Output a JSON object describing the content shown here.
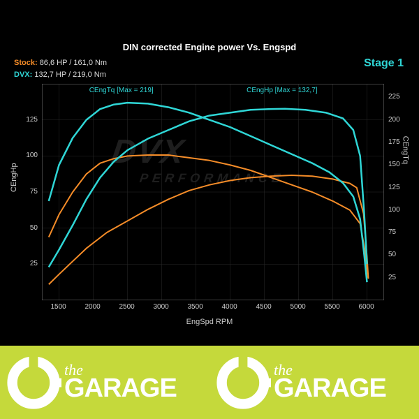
{
  "chart": {
    "type": "line",
    "title": "DIN corrected Engine power Vs. Engspd",
    "stage_label": "Stage 1",
    "background_color": "#000000",
    "grid_color": "#2a2a2a",
    "text_color": "#cccccc",
    "watermark": "DVX",
    "watermark_sub": "PERFORMANCE",
    "legend": {
      "stock": {
        "label": "Stock:",
        "value": "86,6 HP / 161,0 Nm",
        "color": "#f58c28"
      },
      "dvx": {
        "label": "DVX:",
        "value": "132,7 HP / 219,0 Nm",
        "color": "#2fd6d6"
      }
    },
    "x_axis": {
      "label": "EngSpd RPM",
      "min": 1250,
      "max": 6250,
      "ticks": [
        1500,
        2000,
        2500,
        3000,
        3500,
        4000,
        4500,
        5000,
        5500,
        6000
      ]
    },
    "y_axis_left": {
      "label": "CEngHp",
      "min": 0,
      "max": 150,
      "ticks": [
        25,
        50,
        75,
        100,
        125
      ]
    },
    "y_axis_right": {
      "label": "CEngTq",
      "min": 0,
      "max": 240,
      "ticks": [
        25,
        50,
        75,
        100,
        125,
        150,
        175,
        200,
        225
      ]
    },
    "annotations": {
      "tq_max": {
        "text": "CEngTq [Max = 219]",
        "x_rpm": 2400,
        "color": "#2fd6d6"
      },
      "hp_max": {
        "text": "CEngHp [Max = 132,7]",
        "x_rpm": 4700,
        "color": "#2fd6d6"
      }
    },
    "series": {
      "stock_hp": {
        "color": "#f58c28",
        "line_width": 2,
        "axis": "left",
        "points": [
          [
            1350,
            11
          ],
          [
            1500,
            18
          ],
          [
            1700,
            27
          ],
          [
            1900,
            36
          ],
          [
            2200,
            47
          ],
          [
            2500,
            55
          ],
          [
            2800,
            63
          ],
          [
            3100,
            70
          ],
          [
            3400,
            76
          ],
          [
            3700,
            80
          ],
          [
            4000,
            83
          ],
          [
            4300,
            85
          ],
          [
            4600,
            86
          ],
          [
            4900,
            86.6
          ],
          [
            5200,
            86
          ],
          [
            5500,
            84
          ],
          [
            5750,
            81
          ],
          [
            5850,
            78
          ],
          [
            5950,
            60
          ],
          [
            6000,
            30
          ],
          [
            6020,
            15
          ]
        ]
      },
      "stock_tq": {
        "color": "#f58c28",
        "line_width": 2,
        "axis": "right",
        "points": [
          [
            1350,
            70
          ],
          [
            1500,
            95
          ],
          [
            1700,
            120
          ],
          [
            1900,
            140
          ],
          [
            2100,
            152
          ],
          [
            2300,
            157
          ],
          [
            2500,
            160
          ],
          [
            2800,
            161
          ],
          [
            3100,
            161
          ],
          [
            3400,
            158
          ],
          [
            3700,
            155
          ],
          [
            4000,
            150
          ],
          [
            4300,
            144
          ],
          [
            4600,
            136
          ],
          [
            4900,
            128
          ],
          [
            5200,
            120
          ],
          [
            5500,
            110
          ],
          [
            5750,
            100
          ],
          [
            5900,
            85
          ],
          [
            5970,
            55
          ],
          [
            6000,
            25
          ]
        ]
      },
      "dvx_hp": {
        "color": "#2fd6d6",
        "line_width": 2.5,
        "axis": "left",
        "points": [
          [
            1350,
            23
          ],
          [
            1500,
            35
          ],
          [
            1700,
            52
          ],
          [
            1900,
            70
          ],
          [
            2100,
            85
          ],
          [
            2300,
            96
          ],
          [
            2500,
            104
          ],
          [
            2800,
            112
          ],
          [
            3100,
            118
          ],
          [
            3400,
            124
          ],
          [
            3700,
            128
          ],
          [
            4000,
            130
          ],
          [
            4300,
            132
          ],
          [
            4600,
            132.5
          ],
          [
            4800,
            132.7
          ],
          [
            5100,
            132
          ],
          [
            5400,
            130
          ],
          [
            5650,
            126
          ],
          [
            5800,
            118
          ],
          [
            5900,
            100
          ],
          [
            5960,
            60
          ],
          [
            6000,
            25
          ]
        ]
      },
      "dvx_tq": {
        "color": "#2fd6d6",
        "line_width": 2.5,
        "axis": "right",
        "points": [
          [
            1350,
            110
          ],
          [
            1500,
            150
          ],
          [
            1700,
            180
          ],
          [
            1900,
            200
          ],
          [
            2100,
            212
          ],
          [
            2300,
            217
          ],
          [
            2500,
            219
          ],
          [
            2800,
            218
          ],
          [
            3100,
            214
          ],
          [
            3400,
            208
          ],
          [
            3700,
            200
          ],
          [
            4000,
            192
          ],
          [
            4300,
            182
          ],
          [
            4600,
            172
          ],
          [
            4900,
            162
          ],
          [
            5200,
            152
          ],
          [
            5450,
            142
          ],
          [
            5650,
            130
          ],
          [
            5800,
            115
          ],
          [
            5900,
            90
          ],
          [
            5960,
            50
          ],
          [
            6000,
            20
          ]
        ]
      }
    }
  },
  "footer": {
    "background": "#c5d93b",
    "icon_color": "#ffffff",
    "text_the": "the",
    "text_garage": "GARAGE"
  }
}
